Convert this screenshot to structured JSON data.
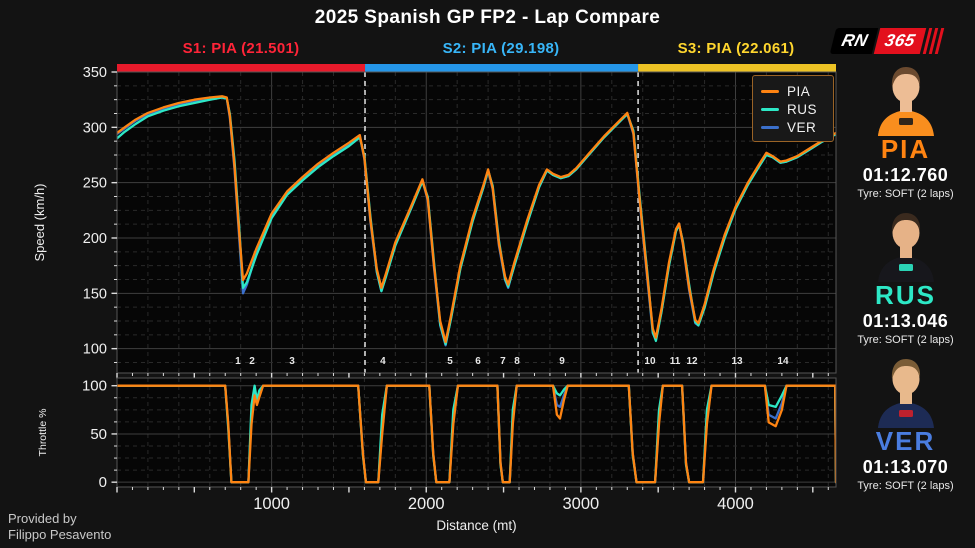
{
  "title": "2025 Spanish GP FP2 - Lap Compare",
  "logo": {
    "part1": "RN",
    "part2": "365"
  },
  "sector_headers": [
    {
      "label": "S1: PIA (21.501)",
      "color": "#ff2438"
    },
    {
      "label": "S2: PIA (29.198)",
      "color": "#38b6f8"
    },
    {
      "label": "S3: PIA (22.061)",
      "color": "#ffd62e"
    }
  ],
  "legend": {
    "position": "upper right",
    "items": [
      {
        "label": "PIA",
        "color": "#ff8412"
      },
      {
        "label": "RUS",
        "color": "#2de8c6"
      },
      {
        "label": "VER",
        "color": "#3b70cc"
      }
    ]
  },
  "drivers": [
    {
      "code": "PIA",
      "time": "01:12.760",
      "tyre": "Tyre: SOFT (2 laps)",
      "color": "#ff8412",
      "suit": "#f98e1e",
      "hair": "#6b4a2f",
      "skin": "#edbd95",
      "accent": "#1a1a1a"
    },
    {
      "code": "RUS",
      "time": "01:13.046",
      "tyre": "Tyre: SOFT (2 laps)",
      "color": "#2de8c6",
      "suit": "#17171c",
      "hair": "#3a2a1e",
      "skin": "#e6b287",
      "accent": "#2de8c6"
    },
    {
      "code": "VER",
      "time": "01:13.070",
      "tyre": "Tyre: SOFT (2 laps)",
      "color": "#4a7de0",
      "suit": "#1d2b55",
      "hair": "#7a5c36",
      "skin": "#e8b98c",
      "accent": "#d0202a"
    }
  ],
  "credit": {
    "line1": "Provided by",
    "line2": "Filippo Pesavento"
  },
  "chart_data": [
    {
      "type": "line",
      "title": "Speed trace",
      "ylabel": "Speed (km/h)",
      "xlabel": "",
      "xlim": [
        0,
        4650
      ],
      "ylim": [
        78,
        350
      ],
      "yticks": [
        100,
        150,
        200,
        250,
        300,
        350
      ],
      "grid": true,
      "sector_lines": [
        1604,
        3370
      ],
      "sector_bands": [
        {
          "from": 0,
          "to": 1604,
          "color": "#e81a2b"
        },
        {
          "from": 1604,
          "to": 3370,
          "color": "#2596e8"
        },
        {
          "from": 3370,
          "to": 4650,
          "color": "#edc325"
        }
      ],
      "turn_markers": [
        {
          "n": "1",
          "d": 782
        },
        {
          "n": "2",
          "d": 873
        },
        {
          "n": "3",
          "d": 1132
        },
        {
          "n": "4",
          "d": 1720
        },
        {
          "n": "5",
          "d": 2154
        },
        {
          "n": "6",
          "d": 2335
        },
        {
          "n": "7",
          "d": 2496
        },
        {
          "n": "8",
          "d": 2587
        },
        {
          "n": "9",
          "d": 2878
        },
        {
          "n": "10",
          "d": 3447
        },
        {
          "n": "11",
          "d": 3609
        },
        {
          "n": "12",
          "d": 3719
        },
        {
          "n": "13",
          "d": 4010
        },
        {
          "n": "14",
          "d": 4307
        }
      ],
      "x": [
        0,
        50,
        120,
        200,
        300,
        400,
        500,
        600,
        680,
        710,
        730,
        760,
        790,
        815,
        840,
        900,
        1000,
        1100,
        1200,
        1300,
        1400,
        1500,
        1570,
        1600,
        1640,
        1680,
        1710,
        1740,
        1800,
        1900,
        1975,
        2010,
        2050,
        2090,
        2125,
        2160,
        2220,
        2300,
        2370,
        2400,
        2430,
        2470,
        2510,
        2530,
        2570,
        2650,
        2730,
        2780,
        2820,
        2870,
        2920,
        2970,
        3050,
        3150,
        3250,
        3300,
        3340,
        3380,
        3430,
        3465,
        3485,
        3520,
        3570,
        3615,
        3635,
        3660,
        3700,
        3740,
        3760,
        3800,
        3860,
        3930,
        4000,
        4080,
        4150,
        4200,
        4240,
        4290,
        4330,
        4400,
        4480,
        4560,
        4650
      ],
      "series": [
        {
          "name": "VER",
          "color": "#3b70cc",
          "values": [
            294,
            299,
            306,
            312,
            317,
            321,
            324,
            326,
            327,
            326,
            308,
            262,
            200,
            150,
            158,
            186,
            219,
            240,
            253,
            265,
            275,
            284,
            292,
            271,
            213,
            169,
            152,
            166,
            194,
            226,
            252,
            234,
            173,
            121,
            103,
            128,
            173,
            216,
            246,
            261,
            244,
            193,
            162,
            155,
            176,
            213,
            246,
            261,
            257,
            254,
            256,
            262,
            275,
            291,
            305,
            312,
            294,
            233,
            162,
            114,
            108,
            133,
            176,
            207,
            213,
            194,
            153,
            123,
            121,
            139,
            171,
            202,
            227,
            249,
            265,
            276,
            273,
            268,
            269,
            273,
            280,
            287,
            294
          ]
        },
        {
          "name": "RUS",
          "color": "#2de8c6",
          "values": [
            290,
            296,
            303,
            310,
            315,
            319,
            322,
            325,
            327,
            326,
            312,
            270,
            210,
            155,
            160,
            184,
            218,
            239,
            252,
            264,
            274,
            283,
            291,
            274,
            218,
            170,
            152,
            165,
            193,
            226,
            251,
            237,
            178,
            122,
            104,
            127,
            172,
            215,
            246,
            261,
            247,
            198,
            163,
            156,
            175,
            212,
            246,
            261,
            257,
            254,
            256,
            262,
            275,
            291,
            305,
            312,
            297,
            238,
            168,
            115,
            107,
            132,
            175,
            206,
            212,
            197,
            158,
            124,
            121,
            137,
            169,
            200,
            226,
            248,
            264,
            275,
            273,
            268,
            269,
            273,
            280,
            287,
            294
          ]
        },
        {
          "name": "PIA",
          "color": "#ff8412",
          "values": [
            295,
            300,
            307,
            313,
            318,
            322,
            325,
            327,
            328,
            327,
            310,
            265,
            205,
            162,
            168,
            190,
            222,
            242,
            255,
            267,
            277,
            286,
            293,
            272,
            215,
            172,
            155,
            168,
            196,
            228,
            253,
            235,
            175,
            125,
            106,
            130,
            175,
            218,
            248,
            262,
            245,
            195,
            165,
            158,
            178,
            215,
            248,
            262,
            258,
            255,
            257,
            263,
            276,
            292,
            306,
            313,
            295,
            235,
            165,
            118,
            110,
            135,
            178,
            208,
            213,
            195,
            155,
            126,
            123,
            140,
            172,
            203,
            228,
            250,
            266,
            277,
            274,
            269,
            270,
            274,
            281,
            288,
            295
          ]
        }
      ]
    },
    {
      "type": "line",
      "title": "Throttle trace",
      "ylabel": "Throttle %",
      "xlabel": "Distance (mt)",
      "xlim": [
        0,
        4650
      ],
      "ylim": [
        -5,
        108
      ],
      "yticks": [
        0,
        50,
        100
      ],
      "xticks": [
        1000,
        2000,
        3000,
        4000
      ],
      "grid": true,
      "x": [
        0,
        650,
        700,
        720,
        740,
        850,
        870,
        890,
        905,
        920,
        945,
        1560,
        1590,
        1610,
        1690,
        1715,
        1745,
        2020,
        2045,
        2065,
        2150,
        2175,
        2205,
        2460,
        2480,
        2495,
        2540,
        2560,
        2585,
        2820,
        2845,
        2865,
        2890,
        2915,
        3310,
        3335,
        3360,
        3480,
        3505,
        3530,
        3655,
        3680,
        3700,
        3790,
        3815,
        3845,
        4190,
        4215,
        4260,
        4300,
        4330,
        4620,
        4645,
        4650
      ],
      "series": [
        {
          "name": "VER",
          "color": "#3b70cc",
          "values": [
            100,
            100,
            100,
            58,
            0,
            0,
            70,
            95,
            85,
            90,
            100,
            100,
            30,
            0,
            0,
            55,
            100,
            100,
            30,
            0,
            0,
            65,
            100,
            100,
            20,
            0,
            0,
            65,
            100,
            100,
            80,
            78,
            90,
            100,
            100,
            30,
            0,
            0,
            65,
            100,
            100,
            20,
            0,
            0,
            65,
            100,
            100,
            70,
            66,
            82,
            100,
            100,
            100,
            0
          ]
        },
        {
          "name": "RUS",
          "color": "#2de8c6",
          "values": [
            100,
            100,
            100,
            55,
            0,
            0,
            80,
            100,
            85,
            95,
            100,
            100,
            28,
            0,
            0,
            70,
            100,
            100,
            28,
            0,
            0,
            75,
            100,
            100,
            18,
            0,
            0,
            75,
            100,
            100,
            92,
            90,
            96,
            100,
            100,
            28,
            0,
            0,
            75,
            100,
            100,
            18,
            0,
            0,
            75,
            100,
            100,
            80,
            78,
            90,
            100,
            100,
            100,
            0
          ]
        },
        {
          "name": "PIA",
          "color": "#ff8412",
          "values": [
            100,
            100,
            100,
            60,
            0,
            0,
            60,
            90,
            80,
            88,
            100,
            100,
            30,
            0,
            0,
            50,
            100,
            100,
            30,
            0,
            0,
            60,
            100,
            100,
            20,
            0,
            0,
            60,
            100,
            100,
            70,
            66,
            85,
            100,
            100,
            30,
            0,
            0,
            60,
            100,
            100,
            20,
            0,
            0,
            60,
            100,
            100,
            62,
            58,
            75,
            100,
            100,
            100,
            0
          ]
        }
      ]
    }
  ]
}
